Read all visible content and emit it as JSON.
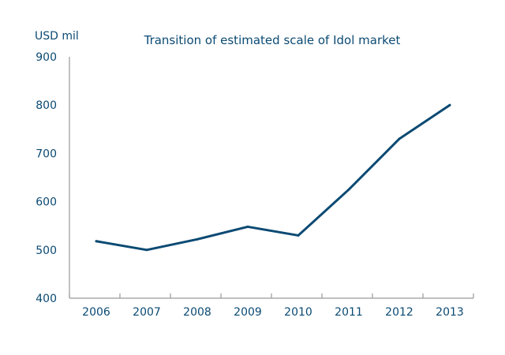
{
  "chart_data": {
    "type": "line",
    "title": "Transition of estimated scale of Idol market",
    "ylabel": "USD mil",
    "xlabel": "",
    "categories": [
      "2006",
      "2007",
      "2008",
      "2009",
      "2010",
      "2011",
      "2012",
      "2013"
    ],
    "series": [
      {
        "values": [
          518,
          500,
          522,
          548,
          530,
          625,
          730,
          800
        ]
      }
    ],
    "ylim": [
      400,
      900
    ],
    "yticks": [
      400,
      500,
      600,
      700,
      800,
      900
    ],
    "grid": false,
    "legend": "none",
    "colors": {
      "line": "#0b4a73",
      "text": "#0b4a73",
      "axis": "#9a9a9a"
    }
  }
}
